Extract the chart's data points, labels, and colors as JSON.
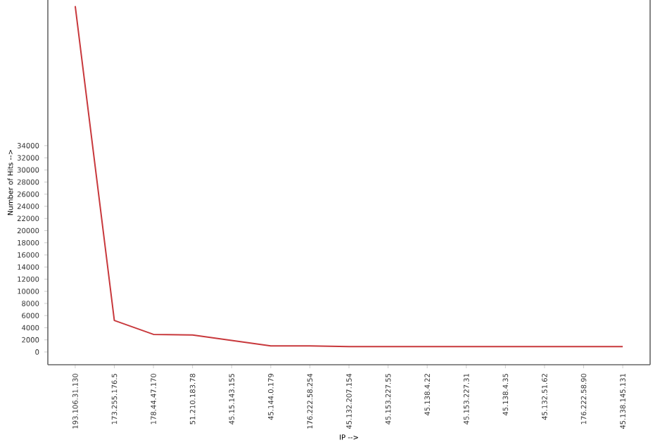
{
  "chart_data": {
    "type": "line",
    "xlabel": "IP -->",
    "ylabel": "Number of Hits -->",
    "categories": [
      "193.106.31.130",
      "173.255.176.5",
      "178.44.47.170",
      "51.210.183.78",
      "45.15.143.155",
      "45.144.0.179",
      "176.222.58.254",
      "45.132.207.154",
      "45.153.227.55",
      "45.138.4.22",
      "45.153.227.31",
      "45.138.4.35",
      "45.132.51.62",
      "176.222.58.90",
      "45.138.145.131"
    ],
    "values": [
      57000,
      5200,
      2900,
      2800,
      1900,
      1000,
      1000,
      900,
      900,
      900,
      900,
      900,
      900,
      900,
      900
    ],
    "color": "#c8383c",
    "ylim": [
      -2100,
      58000
    ],
    "yticks": [
      0,
      2000,
      4000,
      6000,
      8000,
      10000,
      12000,
      14000,
      16000,
      18000,
      20000,
      22000,
      24000,
      26000,
      28000,
      30000,
      32000,
      34000
    ],
    "grid": false,
    "marker": "none",
    "line_style": "solid"
  }
}
